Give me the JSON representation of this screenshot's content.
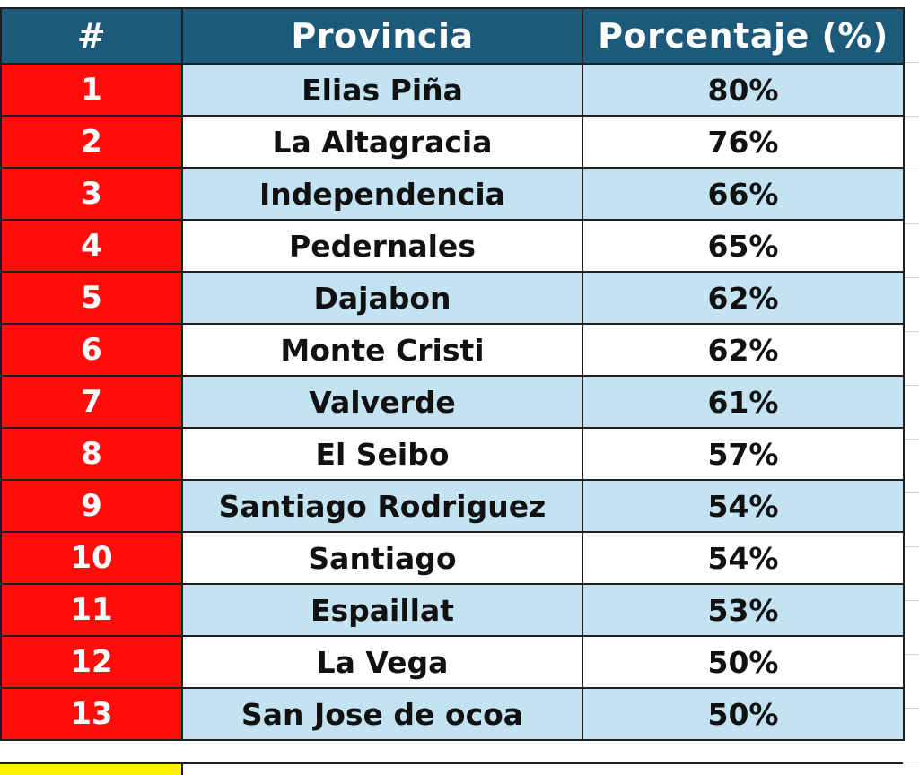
{
  "table": {
    "headers": {
      "rank": "#",
      "province": "Provincia",
      "percentage": "Porcentaje (%)"
    },
    "rows": [
      {
        "rank": "1",
        "province": "Elias Piña",
        "percentage": "80%"
      },
      {
        "rank": "2",
        "province": "La Altagracia",
        "percentage": "76%"
      },
      {
        "rank": "3",
        "province": "Independencia",
        "percentage": "66%"
      },
      {
        "rank": "4",
        "province": "Pedernales",
        "percentage": "65%"
      },
      {
        "rank": "5",
        "province": "Dajabon",
        "percentage": "62%"
      },
      {
        "rank": "6",
        "province": "Monte Cristi",
        "percentage": "62%"
      },
      {
        "rank": "7",
        "province": "Valverde",
        "percentage": "61%"
      },
      {
        "rank": "8",
        "province": "El Seibo",
        "percentage": "57%"
      },
      {
        "rank": "9",
        "province": "Santiago Rodriguez",
        "percentage": "54%"
      },
      {
        "rank": "10",
        "province": "Santiago",
        "percentage": "54%"
      },
      {
        "rank": "11",
        "province": "Espaillat",
        "percentage": "53%"
      },
      {
        "rank": "12",
        "province": "La Vega",
        "percentage": "50%"
      },
      {
        "rank": "13",
        "province": "San Jose de ocoa",
        "percentage": "50%"
      }
    ]
  },
  "colors": {
    "header_bg": "#1c5a7b",
    "rank_bg": "#ff0d0d",
    "stripe_bg": "#c3e2f2",
    "next_rank_bg": "#fff200"
  }
}
